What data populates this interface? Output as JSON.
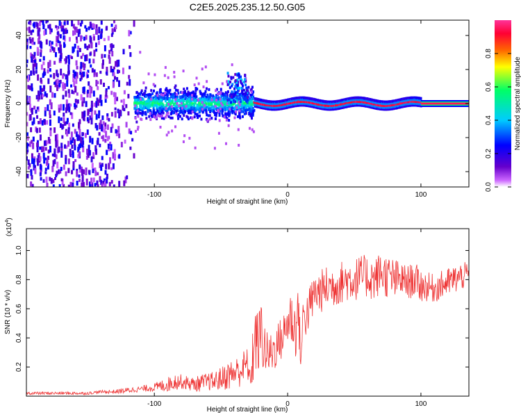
{
  "title": "C2E5.2025.235.12.50.G05",
  "chart_data": [
    {
      "type": "heatmap",
      "title": "C2E5.2025.235.12.50.G05",
      "xlabel": "Height of straight line (km)",
      "ylabel": "Frequency (Hz)",
      "xlim": [
        -196,
        136
      ],
      "ylim": [
        -49,
        49
      ],
      "x_ticks": [
        -100,
        0,
        100
      ],
      "x_tick_labels": [
        "-100",
        "0",
        "100"
      ],
      "y_ticks": [
        -40,
        -20,
        0,
        20,
        40
      ],
      "y_tick_labels": [
        "-40",
        "-20",
        "0",
        "20",
        "40"
      ],
      "colorbar": {
        "label": "Normalized spectral amplitude",
        "range": [
          0,
          1
        ],
        "ticks": [
          0.0,
          0.2,
          0.4,
          0.6,
          0.8
        ],
        "tick_labels": [
          "0.0",
          "0.2",
          "0.4",
          "0.6",
          "0.8"
        ],
        "colors": [
          "#ffffff",
          "#cc66ff",
          "#6600cc",
          "#0000ff",
          "#00ccff",
          "#00ff66",
          "#ffff00",
          "#ff6600",
          "#ff0033",
          "#ff3399"
        ]
      },
      "regions": [
        {
          "name": "broadband noise",
          "x_range": [
            -196,
            -115
          ],
          "freq_range": [
            -49,
            49
          ],
          "amplitude": 0.2
        },
        {
          "name": "scattered signal",
          "x_range": [
            -115,
            -25
          ],
          "freq_spread_hz": 12,
          "amplitude": 0.45
        },
        {
          "name": "bump",
          "x_range": [
            -45,
            -30
          ],
          "freq_range": [
            0,
            18
          ],
          "amplitude": 0.3
        },
        {
          "name": "coherent line",
          "x_range": [
            -25,
            100
          ],
          "freq_spread_hz": 4,
          "amplitude": 0.9
        },
        {
          "name": "constant line",
          "x_range": [
            100,
            136
          ],
          "frequency_hz": 0,
          "amplitude": 0.95
        }
      ]
    },
    {
      "type": "line",
      "xlabel": "Height of straight line (km)",
      "ylabel": "SNR (10 * v/v)",
      "scale_label": "(x10",
      "scale_exponent": "4",
      "scale_suffix": ")",
      "xlim": [
        -196,
        136
      ],
      "ylim": [
        0.0,
        1.15
      ],
      "x_ticks": [
        -100,
        0,
        100
      ],
      "x_tick_labels": [
        "-100",
        "0",
        "100"
      ],
      "y_ticks": [
        0.2,
        0.4,
        0.6,
        0.8,
        1.0
      ],
      "y_tick_labels": [
        "0.2",
        "0.4",
        "0.6",
        "0.8",
        "1.0"
      ],
      "series": [
        {
          "name": "SNR",
          "color": "#ee3333",
          "x": [
            -196,
            -180,
            -160,
            -150,
            -140,
            -130,
            -120,
            -110,
            -100,
            -95,
            -90,
            -85,
            -80,
            -75,
            -70,
            -65,
            -60,
            -55,
            -50,
            -45,
            -40,
            -35,
            -30,
            -28,
            -26,
            -24,
            -22,
            -20,
            -18,
            -16,
            -14,
            -12,
            -10,
            -8,
            -6,
            -4,
            -2,
            0,
            2,
            4,
            6,
            8,
            10,
            12,
            14,
            16,
            18,
            20,
            25,
            30,
            35,
            40,
            45,
            50,
            55,
            60,
            65,
            70,
            75,
            80,
            85,
            90,
            95,
            100,
            105,
            110,
            115,
            120,
            125,
            130,
            136
          ],
          "values": [
            0.02,
            0.02,
            0.02,
            0.02,
            0.03,
            0.03,
            0.04,
            0.05,
            0.06,
            0.07,
            0.08,
            0.1,
            0.1,
            0.09,
            0.08,
            0.09,
            0.1,
            0.1,
            0.12,
            0.14,
            0.16,
            0.18,
            0.22,
            0.1,
            0.3,
            0.4,
            0.35,
            0.45,
            0.35,
            0.3,
            0.28,
            0.3,
            0.32,
            0.35,
            0.38,
            0.4,
            0.45,
            0.5,
            0.55,
            0.5,
            0.45,
            0.6,
            0.25,
            0.58,
            0.55,
            0.6,
            0.65,
            0.7,
            0.72,
            0.75,
            0.76,
            0.78,
            0.8,
            0.8,
            0.82,
            0.82,
            0.8,
            0.85,
            0.82,
            0.8,
            0.8,
            0.78,
            0.8,
            0.76,
            0.75,
            0.74,
            0.76,
            0.78,
            0.8,
            0.82,
            0.84
          ],
          "noise": [
            0.01,
            0.01,
            0.01,
            0.01,
            0.01,
            0.015,
            0.02,
            0.02,
            0.03,
            0.04,
            0.05,
            0.06,
            0.05,
            0.05,
            0.05,
            0.06,
            0.06,
            0.07,
            0.08,
            0.1,
            0.1,
            0.12,
            0.12,
            0.05,
            0.25,
            0.25,
            0.2,
            0.25,
            0.2,
            0.15,
            0.15,
            0.15,
            0.15,
            0.15,
            0.15,
            0.15,
            0.15,
            0.15,
            0.2,
            0.2,
            0.2,
            0.2,
            0.1,
            0.2,
            0.15,
            0.15,
            0.15,
            0.15,
            0.15,
            0.15,
            0.15,
            0.15,
            0.15,
            0.15,
            0.15,
            0.15,
            0.15,
            0.15,
            0.15,
            0.15,
            0.12,
            0.12,
            0.12,
            0.12,
            0.1,
            0.1,
            0.1,
            0.1,
            0.1,
            0.1,
            0.08
          ]
        }
      ]
    }
  ]
}
